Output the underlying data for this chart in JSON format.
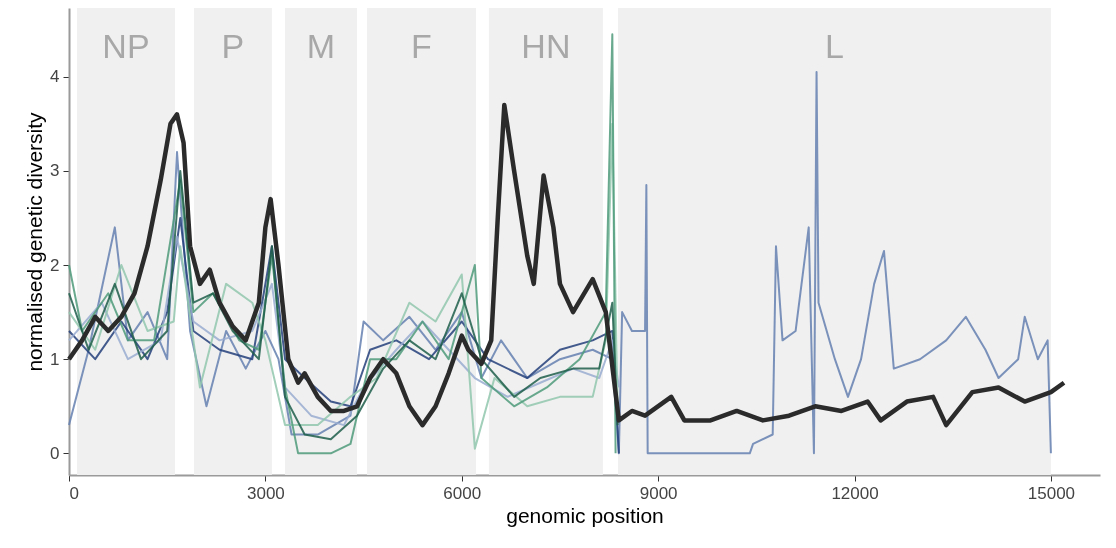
{
  "chart_data": {
    "type": "line",
    "xlabel": "genomic position",
    "ylabel": "normalised genetic diversity",
    "xlim": [
      0,
      15750
    ],
    "ylim": [
      -0.23,
      4.73
    ],
    "xticks": [
      0,
      3000,
      6000,
      9000,
      12000,
      15000
    ],
    "yticks": [
      0,
      1,
      2,
      3,
      4
    ],
    "grid": false,
    "line_style": "solid",
    "marker": "none",
    "bands": [
      {
        "axis": "x",
        "from": 122,
        "to": 1619,
        "label": "NP",
        "color": "#f0f0f0"
      },
      {
        "axis": "x",
        "from": 1909,
        "to": 3100,
        "label": "P",
        "color": "#f0f0f0"
      },
      {
        "axis": "x",
        "from": 3299,
        "to": 4399,
        "label": "M",
        "color": "#f0f0f0"
      },
      {
        "axis": "x",
        "from": 4552,
        "to": 6217,
        "label": "F",
        "color": "#f0f0f0"
      },
      {
        "axis": "x",
        "from": 6415,
        "to": 8156,
        "label": "HN",
        "color": "#f0f0f0"
      },
      {
        "axis": "x",
        "from": 8386,
        "to": 15000,
        "label": "L",
        "color": "#f0f0f0"
      }
    ],
    "series": [
      {
        "color": "#6580b0",
        "x": [
          0,
          300,
          700,
          900,
          1200,
          1500,
          1650,
          1850,
          2100,
          2400,
          2700,
          3000,
          3200,
          3400,
          3800,
          4300,
          4500,
          4800,
          5200,
          5600,
          6000,
          6300,
          6600,
          7000,
          7500,
          8000,
          8300,
          8400,
          8450,
          8600,
          8800,
          8820,
          8840,
          10400,
          10450,
          10750,
          10800,
          10900,
          11100,
          11300,
          11380,
          11420,
          11450,
          11700,
          11900,
          12100,
          12300,
          12450,
          12600,
          13000,
          13400,
          13700,
          14000,
          14200,
          14500,
          14600,
          14800,
          14950,
          15000
        ],
        "values": [
          0.3,
          1.1,
          2.4,
          1.2,
          1.5,
          1.0,
          3.2,
          1.3,
          0.5,
          1.3,
          0.9,
          1.3,
          1.0,
          0.2,
          0.2,
          0.4,
          1.4,
          1.2,
          1.45,
          1.1,
          1.5,
          0.8,
          1.2,
          0.8,
          1.0,
          1.1,
          1.0,
          0,
          1.5,
          1.3,
          1.3,
          2.85,
          0,
          0,
          0.1,
          0.2,
          2.2,
          1.2,
          1.3,
          2.4,
          0,
          4.05,
          1.6,
          1.0,
          0.6,
          1.0,
          1.8,
          2.15,
          0.9,
          1.0,
          1.2,
          1.45,
          1.1,
          0.8,
          1.0,
          1.45,
          1.0,
          1.2,
          0
        ]
      },
      {
        "color": "#23407a",
        "x": [
          0,
          400,
          800,
          1200,
          1500,
          1700,
          1900,
          2300,
          2800,
          3100,
          3300,
          3600,
          4000,
          4300,
          4600,
          5000,
          5500,
          6000,
          6400,
          7000,
          7500,
          8000,
          8300,
          8400
        ],
        "values": [
          1.3,
          1.0,
          1.4,
          1.0,
          1.5,
          2.5,
          1.3,
          1.1,
          1.0,
          2.2,
          1.0,
          0.8,
          0.55,
          0.5,
          1.1,
          1.2,
          1.0,
          1.4,
          1.0,
          0.8,
          1.1,
          1.2,
          1.3,
          0
        ]
      },
      {
        "color": "#99acd0",
        "x": [
          0,
          500,
          900,
          1400,
          1650,
          1900,
          2300,
          2800,
          3100,
          3300,
          3700,
          4200,
          4500,
          5000,
          5400,
          5800,
          6200,
          6700,
          7200,
          7700,
          8100,
          8300,
          8400
        ],
        "values": [
          1.2,
          1.6,
          1.0,
          1.2,
          2.3,
          1.4,
          1.2,
          1.3,
          1.8,
          0.7,
          0.4,
          0.3,
          0.7,
          1.1,
          1.4,
          1.1,
          0.8,
          0.6,
          0.75,
          0.9,
          0.8,
          1.2,
          0.7
        ]
      },
      {
        "color": "#90c7ad",
        "x": [
          0,
          400,
          800,
          1200,
          1600,
          1700,
          2000,
          2400,
          2800,
          3000,
          3300,
          3800,
          4300,
          4700,
          5200,
          5600,
          6000,
          6200,
          6500,
          7000,
          7500,
          8000,
          8200,
          8300,
          8380
        ],
        "values": [
          1.5,
          1.1,
          2.0,
          1.3,
          1.4,
          2.2,
          0.7,
          1.8,
          1.6,
          1.2,
          0.3,
          0.3,
          0.6,
          0.8,
          1.6,
          1.4,
          1.9,
          0.05,
          0.8,
          0.5,
          0.6,
          0.6,
          1.2,
          3.5,
          0.5
        ]
      },
      {
        "color": "#4f9b7b",
        "x": [
          0,
          200,
          600,
          900,
          1300,
          1700,
          1900,
          2200,
          2600,
          2900,
          3100,
          3300,
          3500,
          4000,
          4300,
          4600,
          5000,
          5400,
          5800,
          6200,
          6300,
          6800,
          7300,
          7800,
          8200,
          8300,
          8350
        ],
        "values": [
          2.0,
          1.3,
          1.7,
          1.2,
          1.2,
          2.9,
          1.5,
          1.7,
          1.2,
          1.1,
          2.1,
          0.7,
          0.0,
          0.0,
          0.1,
          1.0,
          1.0,
          1.4,
          1.0,
          2.0,
          0.8,
          0.5,
          0.7,
          1.0,
          1.5,
          4.45,
          0
        ]
      },
      {
        "color": "#1f5e4a",
        "x": [
          0,
          300,
          700,
          1100,
          1500,
          1700,
          1900,
          2200,
          2500,
          2900,
          3100,
          3300,
          3600,
          4000,
          4400,
          4800,
          5200,
          5600,
          6000,
          6300,
          6800,
          7200,
          7700,
          8100,
          8300,
          8380
        ],
        "values": [
          1.7,
          1.1,
          1.8,
          1.0,
          1.3,
          3.0,
          1.6,
          1.7,
          1.3,
          1.0,
          2.2,
          0.6,
          0.2,
          0.15,
          0.4,
          0.9,
          1.2,
          1.0,
          1.7,
          1.0,
          0.6,
          0.8,
          0.9,
          0.9,
          1.6,
          0.3
        ]
      },
      {
        "color": "#2b2b2b",
        "x": [
          0,
          200,
          400,
          600,
          800,
          1000,
          1200,
          1400,
          1550,
          1650,
          1750,
          1850,
          2000,
          2150,
          2300,
          2500,
          2700,
          2800,
          2900,
          3000,
          3080,
          3200,
          3350,
          3500,
          3600,
          3800,
          4000,
          4200,
          4400,
          4600,
          4800,
          5000,
          5200,
          5400,
          5600,
          5800,
          6000,
          6100,
          6300,
          6450,
          6550,
          6650,
          6800,
          7000,
          7100,
          7250,
          7400,
          7500,
          7700,
          8000,
          8200,
          8400,
          8600,
          8800,
          9200,
          9400,
          9800,
          10200,
          10600,
          11000,
          11400,
          11800,
          12200,
          12400,
          12800,
          13200,
          13400,
          13800,
          14200,
          14600,
          15000,
          15200
        ],
        "values": [
          1.0,
          1.2,
          1.45,
          1.3,
          1.45,
          1.7,
          2.2,
          2.9,
          3.5,
          3.6,
          3.3,
          2.2,
          1.8,
          1.95,
          1.6,
          1.35,
          1.2,
          1.4,
          1.6,
          2.4,
          2.7,
          2.0,
          1.0,
          0.75,
          0.85,
          0.6,
          0.45,
          0.45,
          0.5,
          0.8,
          1.0,
          0.85,
          0.5,
          0.3,
          0.5,
          0.85,
          1.25,
          1.1,
          0.95,
          1.2,
          2.5,
          3.7,
          3.0,
          2.1,
          1.8,
          2.95,
          2.4,
          1.8,
          1.5,
          1.85,
          1.5,
          0.35,
          0.45,
          0.4,
          0.6,
          0.35,
          0.35,
          0.45,
          0.35,
          0.4,
          0.5,
          0.45,
          0.55,
          0.35,
          0.55,
          0.6,
          0.3,
          0.65,
          0.7,
          0.55,
          0.65,
          0.75
        ]
      }
    ]
  }
}
